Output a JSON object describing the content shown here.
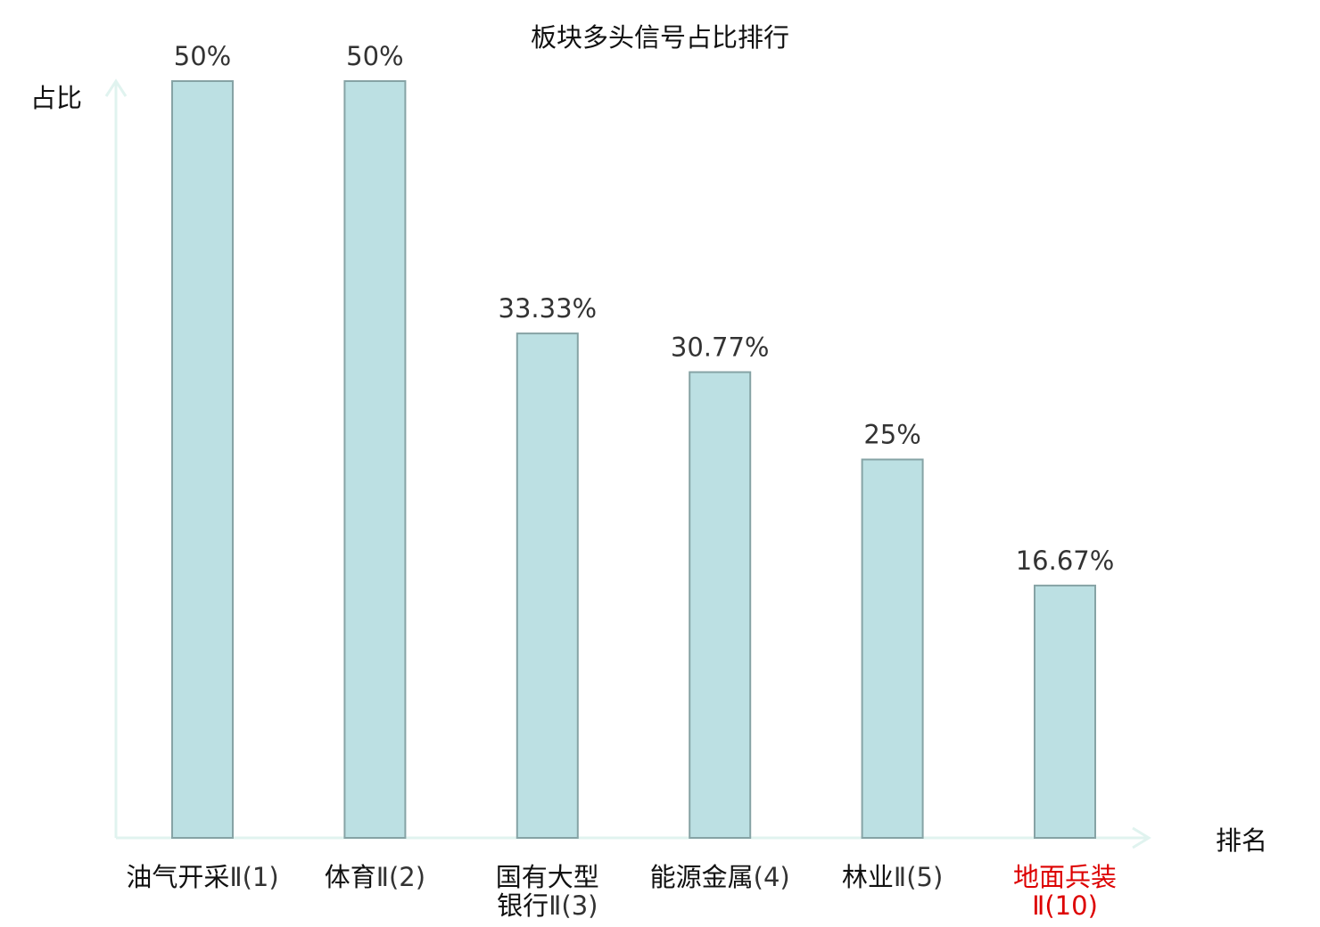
{
  "chart_data": {
    "type": "bar",
    "title": "板块多头信号占比排行",
    "ylabel": "占比",
    "xlabel": "排名",
    "ylim": [
      0,
      50
    ],
    "grid": false,
    "categories": [
      {
        "name": "油气开采",
        "rank": "Ⅱ(1)",
        "highlight": false
      },
      {
        "name": "体育",
        "rank": "Ⅱ(2)",
        "highlight": false
      },
      {
        "name": "国有大型银行",
        "rank": "Ⅱ(3)",
        "highlight": false
      },
      {
        "name": "能源金属",
        "rank": "(4)",
        "highlight": false
      },
      {
        "name": "林业",
        "rank": "Ⅱ(5)",
        "highlight": false
      },
      {
        "name": "地面兵装",
        "rank": "Ⅱ(10)",
        "highlight": true
      }
    ],
    "values": [
      50,
      50,
      33.33,
      30.77,
      25,
      16.67
    ],
    "value_labels": [
      "50%",
      "50%",
      "33.33%",
      "30.77%",
      "25%",
      "16.67%"
    ],
    "colors": {
      "bar_fill": "#bce0e3",
      "bar_stroke": "#86a3a5",
      "axis": "#e0f3ef",
      "highlight_text": "#dd0000",
      "normal_text": "#111111",
      "rank_text": "#333333"
    }
  }
}
